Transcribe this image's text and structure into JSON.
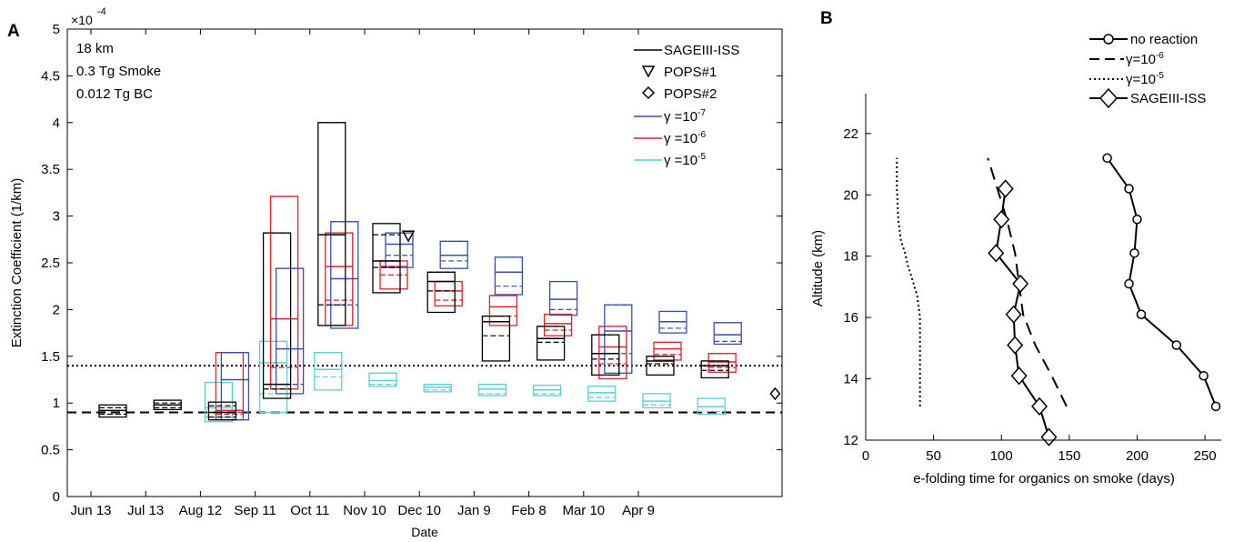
{
  "panels": {
    "a": {
      "letter": "A",
      "exponent_base": "×10",
      "exponent_power": "-4",
      "annotations": [
        "18 km",
        "0.3 Tg Smoke",
        "0.012 Tg BC"
      ],
      "legend": {
        "sage": "SAGEIII-ISS",
        "pops1": "POPS#1",
        "pops2": "POPS#2",
        "g7_base": "γ =10",
        "g7_exp": "-7",
        "g6_base": "γ =10",
        "g6_exp": "-6",
        "g5_base": "γ =10",
        "g5_exp": "-5"
      }
    },
    "b": {
      "letter": "B",
      "legend": {
        "no_reaction": "no reaction",
        "g6_base": "γ=10",
        "g6_exp": "-6",
        "g5_base": "γ=10",
        "g5_exp": "-5",
        "sage": "SAGEIII-ISS"
      }
    }
  },
  "colors": {
    "black": "#000000",
    "blue": "#3a4fa8",
    "red": "#e0202a",
    "cyan": "#5ccfd3"
  },
  "chart_data": [
    {
      "type": "box",
      "panel": "A",
      "xlabel": "Date",
      "ylabel": "Extinction Coefficient (1/km)",
      "y_scale_note": "×10^-4",
      "ylim": [
        0,
        5
      ],
      "yticks": [
        0,
        0.5,
        1,
        1.5,
        2,
        2.5,
        3,
        3.5,
        4,
        4.5,
        5
      ],
      "ytick_labels": [
        "0",
        "0.5",
        "1",
        "1.5",
        "2",
        "2.5",
        "3",
        "3.5",
        "4",
        "4.5",
        "5"
      ],
      "x_categories": [
        "Jun 13",
        "Jul 13",
        "Aug 12",
        "Sep 11",
        "Oct 11",
        "Nov 10",
        "Dec 10",
        "Jan 9",
        "Feb 8",
        "Mar 10",
        "Apr 9"
      ],
      "reference_lines": [
        {
          "style": "dotted",
          "y": 1.4
        },
        {
          "style": "dashed",
          "y": 0.9
        }
      ],
      "series": [
        {
          "name": "SAGEIII-ISS",
          "boxes": [
            {
              "month_index": 1,
              "low": 0.85,
              "q1": 0.88,
              "median": 0.92,
              "q3": 0.95,
              "high": 0.98
            },
            {
              "month_index": 2,
              "low": 0.93,
              "q1": 0.95,
              "median": 0.98,
              "q3": 1.0,
              "high": 1.03
            },
            {
              "month_index": 3,
              "low": 0.82,
              "q1": 0.85,
              "median": 0.9,
              "q3": 0.97,
              "high": 1.01
            },
            {
              "month_index": 4,
              "low": 1.05,
              "q1": 1.15,
              "median": 1.2,
              "q3": 2.82,
              "high": 2.82
            },
            {
              "month_index": 5,
              "low": 1.83,
              "q1": 2.05,
              "median": 2.8,
              "q3": 4.0,
              "high": 4.0
            },
            {
              "month_index": 6,
              "low": 2.18,
              "q1": 2.45,
              "median": 2.52,
              "q3": 2.8,
              "high": 2.92
            },
            {
              "month_index": 7,
              "low": 1.97,
              "q1": 2.2,
              "median": 2.3,
              "q3": 2.4,
              "high": 2.4
            },
            {
              "month_index": 8,
              "low": 1.45,
              "q1": 1.72,
              "median": 1.87,
              "q3": 1.93,
              "high": 1.93
            },
            {
              "month_index": 9,
              "low": 1.46,
              "q1": 1.65,
              "median": 1.69,
              "q3": 1.82,
              "high": 1.82
            },
            {
              "month_index": 10,
              "low": 1.3,
              "q1": 1.47,
              "median": 1.53,
              "q3": 1.73,
              "high": 1.73
            },
            {
              "month_index": 11,
              "low": 1.3,
              "q1": 1.42,
              "median": 1.45,
              "q3": 1.5,
              "high": 1.5
            },
            {
              "month_index": 12,
              "low": 1.27,
              "q1": 1.35,
              "median": 1.4,
              "q3": 1.45,
              "high": 1.45
            }
          ]
        },
        {
          "name": "γ=10^-7",
          "boxes": [
            {
              "month_index": 3,
              "low": 0.82,
              "q1": 0.9,
              "median": 1.25,
              "q3": 1.54,
              "high": 1.54
            },
            {
              "month_index": 4,
              "low": 1.1,
              "q1": 1.2,
              "median": 1.58,
              "q3": 2.44,
              "high": 2.44
            },
            {
              "month_index": 5,
              "low": 1.8,
              "q1": 2.05,
              "median": 2.33,
              "q3": 2.94,
              "high": 2.94
            },
            {
              "month_index": 6,
              "low": 2.45,
              "q1": 2.58,
              "median": 2.7,
              "q3": 2.82,
              "high": 2.82
            },
            {
              "month_index": 7,
              "low": 2.44,
              "q1": 2.52,
              "median": 2.58,
              "q3": 2.73,
              "high": 2.73
            },
            {
              "month_index": 8,
              "low": 2.16,
              "q1": 2.25,
              "median": 2.4,
              "q3": 2.56,
              "high": 2.56
            },
            {
              "month_index": 9,
              "low": 1.94,
              "q1": 2.0,
              "median": 2.11,
              "q3": 2.3,
              "high": 2.3
            },
            {
              "month_index": 10,
              "low": 1.32,
              "q1": 1.53,
              "median": 1.77,
              "q3": 2.05,
              "high": 2.05
            },
            {
              "month_index": 11,
              "low": 1.75,
              "q1": 1.8,
              "median": 1.87,
              "q3": 1.98,
              "high": 1.98
            },
            {
              "month_index": 12,
              "low": 1.63,
              "q1": 1.66,
              "median": 1.73,
              "q3": 1.86,
              "high": 1.86
            }
          ]
        },
        {
          "name": "γ=10^-6",
          "boxes": [
            {
              "month_index": 3,
              "low": 0.82,
              "q1": 0.88,
              "median": 0.92,
              "q3": 1.54,
              "high": 1.54
            },
            {
              "month_index": 4,
              "low": 1.15,
              "q1": 1.38,
              "median": 1.9,
              "q3": 3.21,
              "high": 3.21
            },
            {
              "month_index": 5,
              "low": 1.83,
              "q1": 2.1,
              "median": 2.46,
              "q3": 2.82,
              "high": 2.82
            },
            {
              "month_index": 6,
              "low": 2.22,
              "q1": 2.37,
              "median": 2.46,
              "q3": 2.52,
              "high": 2.52
            },
            {
              "month_index": 7,
              "low": 2.04,
              "q1": 2.1,
              "median": 2.2,
              "q3": 2.3,
              "high": 2.3
            },
            {
              "month_index": 8,
              "low": 1.83,
              "q1": 1.93,
              "median": 2.03,
              "q3": 2.15,
              "high": 2.15
            },
            {
              "month_index": 9,
              "low": 1.72,
              "q1": 1.78,
              "median": 1.85,
              "q3": 1.95,
              "high": 1.95
            },
            {
              "month_index": 10,
              "low": 1.26,
              "q1": 1.42,
              "median": 1.6,
              "q3": 1.82,
              "high": 1.82
            },
            {
              "month_index": 11,
              "low": 1.46,
              "q1": 1.52,
              "median": 1.58,
              "q3": 1.65,
              "high": 1.65
            },
            {
              "month_index": 12,
              "low": 1.33,
              "q1": 1.38,
              "median": 1.44,
              "q3": 1.53,
              "high": 1.53
            }
          ]
        },
        {
          "name": "γ=10^-5",
          "boxes": [
            {
              "month_index": 3,
              "low": 0.8,
              "q1": 0.85,
              "median": 0.95,
              "q3": 1.22,
              "high": 1.22
            },
            {
              "month_index": 4,
              "low": 0.9,
              "q1": 1.1,
              "median": 1.43,
              "q3": 1.66,
              "high": 1.66
            },
            {
              "month_index": 5,
              "low": 1.14,
              "q1": 1.28,
              "median": 1.36,
              "q3": 1.54,
              "high": 1.54
            },
            {
              "month_index": 6,
              "low": 1.18,
              "q1": 1.2,
              "median": 1.24,
              "q3": 1.32,
              "high": 1.32
            },
            {
              "month_index": 7,
              "low": 1.12,
              "q1": 1.14,
              "median": 1.17,
              "q3": 1.2,
              "high": 1.2
            },
            {
              "month_index": 8,
              "low": 1.08,
              "q1": 1.1,
              "median": 1.15,
              "q3": 1.2,
              "high": 1.2
            },
            {
              "month_index": 9,
              "low": 1.08,
              "q1": 1.1,
              "median": 1.14,
              "q3": 1.19,
              "high": 1.19
            },
            {
              "month_index": 10,
              "low": 1.02,
              "q1": 1.06,
              "median": 1.11,
              "q3": 1.18,
              "high": 1.18
            },
            {
              "month_index": 11,
              "low": 0.95,
              "q1": 0.98,
              "median": 1.02,
              "q3": 1.1,
              "high": 1.1
            },
            {
              "month_index": 12,
              "low": 0.88,
              "q1": 0.91,
              "median": 0.96,
              "q3": 1.05,
              "high": 1.05
            }
          ]
        }
      ],
      "points": [
        {
          "name": "POPS#1",
          "month_index": 6.3,
          "y": 2.78,
          "marker": "triangle-down"
        },
        {
          "name": "POPS#2",
          "month_index": 13.0,
          "y": 1.1,
          "marker": "diamond"
        }
      ]
    },
    {
      "type": "line",
      "panel": "B",
      "xlabel": "e-folding time for organics on smoke (days)",
      "ylabel": "Altitude (km)",
      "xlim": [
        0,
        260
      ],
      "ylim": [
        12,
        23.3
      ],
      "xticks": [
        0,
        50,
        100,
        150,
        200,
        250
      ],
      "yticks": [
        12,
        14,
        16,
        18,
        20,
        22
      ],
      "series": [
        {
          "name": "no reaction",
          "marker": "circle",
          "style": "solid",
          "x": [
            258,
            249,
            229,
            203,
            194,
            198,
            200,
            194,
            178
          ],
          "y": [
            13.1,
            14.1,
            15.1,
            16.1,
            17.1,
            18.1,
            19.2,
            20.2,
            21.2
          ]
        },
        {
          "name": "γ=10^-6",
          "style": "dashed",
          "x": [
            148,
            137,
            125,
            116,
            113,
            110,
            104,
            97,
            90
          ],
          "y": [
            13.1,
            14.1,
            15.1,
            16.1,
            17.1,
            18.1,
            19.2,
            20.2,
            21.2
          ]
        },
        {
          "name": "γ=10^-5",
          "style": "dotted",
          "x": [
            40,
            40,
            40,
            40,
            38,
            34,
            31,
            29,
            26,
            24,
            23,
            23
          ],
          "y": [
            13.1,
            14.2,
            15.3,
            16.0,
            16.7,
            17.3,
            17.7,
            18.1,
            18.5,
            19.2,
            20.2,
            21.2
          ]
        },
        {
          "name": "SAGEIII-ISS",
          "marker": "diamond",
          "style": "solid",
          "x": [
            135,
            128,
            113,
            110,
            109,
            114,
            96,
            100,
            103
          ],
          "y": [
            12.1,
            13.1,
            14.1,
            15.1,
            16.1,
            17.1,
            18.1,
            19.2,
            20.2
          ]
        }
      ]
    }
  ]
}
